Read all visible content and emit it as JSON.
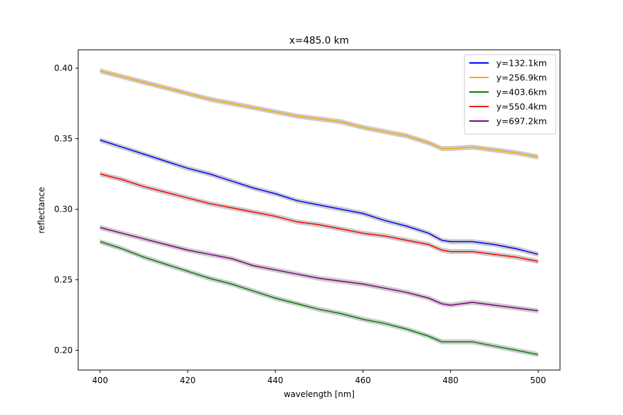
{
  "chart_data": {
    "type": "line",
    "title": "x=485.0 km",
    "xlabel": "wavelength [nm]",
    "ylabel": "reflectance",
    "xlim": [
      395,
      505
    ],
    "ylim": [
      0.186,
      0.413
    ],
    "xticks": [
      {
        "value": 400,
        "label": "400"
      },
      {
        "value": 420,
        "label": "420"
      },
      {
        "value": 440,
        "label": "440"
      },
      {
        "value": 460,
        "label": "460"
      },
      {
        "value": 480,
        "label": "480"
      },
      {
        "value": 500,
        "label": "500"
      }
    ],
    "yticks": [
      {
        "value": 0.2,
        "label": "0.20"
      },
      {
        "value": 0.25,
        "label": "0.25"
      },
      {
        "value": 0.3,
        "label": "0.30"
      },
      {
        "value": 0.35,
        "label": "0.35"
      },
      {
        "value": 0.4,
        "label": "0.40"
      }
    ],
    "grid": false,
    "legend_position": "top-right",
    "uncertainty_band": {
      "color": "#cccccc",
      "half_width": 0.0018
    },
    "series": [
      {
        "name": "y=132.1km",
        "color": "#0000ff",
        "points": [
          [
            400,
            0.349
          ],
          [
            405,
            0.344
          ],
          [
            410,
            0.339
          ],
          [
            415,
            0.334
          ],
          [
            420,
            0.329
          ],
          [
            425,
            0.325
          ],
          [
            430,
            0.32
          ],
          [
            435,
            0.315
          ],
          [
            440,
            0.311
          ],
          [
            445,
            0.306
          ],
          [
            450,
            0.303
          ],
          [
            455,
            0.3
          ],
          [
            460,
            0.297
          ],
          [
            465,
            0.292
          ],
          [
            470,
            0.288
          ],
          [
            475,
            0.283
          ],
          [
            478,
            0.278
          ],
          [
            480,
            0.277
          ],
          [
            485,
            0.277
          ],
          [
            490,
            0.275
          ],
          [
            495,
            0.272
          ],
          [
            500,
            0.268
          ]
        ]
      },
      {
        "name": "y=256.9km",
        "color": "#ffa500",
        "points": [
          [
            400,
            0.398
          ],
          [
            405,
            0.394
          ],
          [
            410,
            0.39
          ],
          [
            415,
            0.386
          ],
          [
            420,
            0.382
          ],
          [
            425,
            0.378
          ],
          [
            430,
            0.375
          ],
          [
            435,
            0.372
          ],
          [
            440,
            0.369
          ],
          [
            445,
            0.366
          ],
          [
            450,
            0.364
          ],
          [
            455,
            0.362
          ],
          [
            460,
            0.358
          ],
          [
            465,
            0.355
          ],
          [
            470,
            0.352
          ],
          [
            475,
            0.347
          ],
          [
            478,
            0.343
          ],
          [
            480,
            0.343
          ],
          [
            485,
            0.344
          ],
          [
            490,
            0.342
          ],
          [
            495,
            0.34
          ],
          [
            500,
            0.337
          ]
        ]
      },
      {
        "name": "y=403.6km",
        "color": "#008000",
        "points": [
          [
            400,
            0.277
          ],
          [
            405,
            0.272
          ],
          [
            410,
            0.266
          ],
          [
            415,
            0.261
          ],
          [
            420,
            0.256
          ],
          [
            425,
            0.251
          ],
          [
            430,
            0.247
          ],
          [
            435,
            0.242
          ],
          [
            440,
            0.237
          ],
          [
            445,
            0.233
          ],
          [
            450,
            0.229
          ],
          [
            455,
            0.226
          ],
          [
            460,
            0.222
          ],
          [
            465,
            0.219
          ],
          [
            470,
            0.215
          ],
          [
            475,
            0.21
          ],
          [
            478,
            0.206
          ],
          [
            480,
            0.206
          ],
          [
            485,
            0.206
          ],
          [
            490,
            0.203
          ],
          [
            495,
            0.2
          ],
          [
            500,
            0.197
          ]
        ]
      },
      {
        "name": "y=550.4km",
        "color": "#ff0000",
        "points": [
          [
            400,
            0.325
          ],
          [
            405,
            0.321
          ],
          [
            410,
            0.316
          ],
          [
            415,
            0.312
          ],
          [
            420,
            0.308
          ],
          [
            425,
            0.304
          ],
          [
            430,
            0.301
          ],
          [
            435,
            0.298
          ],
          [
            440,
            0.295
          ],
          [
            445,
            0.291
          ],
          [
            450,
            0.289
          ],
          [
            455,
            0.286
          ],
          [
            460,
            0.283
          ],
          [
            465,
            0.281
          ],
          [
            470,
            0.278
          ],
          [
            475,
            0.275
          ],
          [
            478,
            0.271
          ],
          [
            480,
            0.27
          ],
          [
            485,
            0.27
          ],
          [
            490,
            0.268
          ],
          [
            495,
            0.266
          ],
          [
            500,
            0.263
          ]
        ]
      },
      {
        "name": "y=697.2km",
        "color": "#800080",
        "points": [
          [
            400,
            0.287
          ],
          [
            405,
            0.283
          ],
          [
            410,
            0.279
          ],
          [
            415,
            0.275
          ],
          [
            420,
            0.271
          ],
          [
            425,
            0.268
          ],
          [
            430,
            0.265
          ],
          [
            435,
            0.26
          ],
          [
            440,
            0.257
          ],
          [
            445,
            0.254
          ],
          [
            450,
            0.251
          ],
          [
            455,
            0.249
          ],
          [
            460,
            0.247
          ],
          [
            465,
            0.244
          ],
          [
            470,
            0.241
          ],
          [
            475,
            0.237
          ],
          [
            478,
            0.233
          ],
          [
            480,
            0.232
          ],
          [
            485,
            0.234
          ],
          [
            490,
            0.232
          ],
          [
            495,
            0.23
          ],
          [
            500,
            0.228
          ]
        ]
      }
    ]
  }
}
